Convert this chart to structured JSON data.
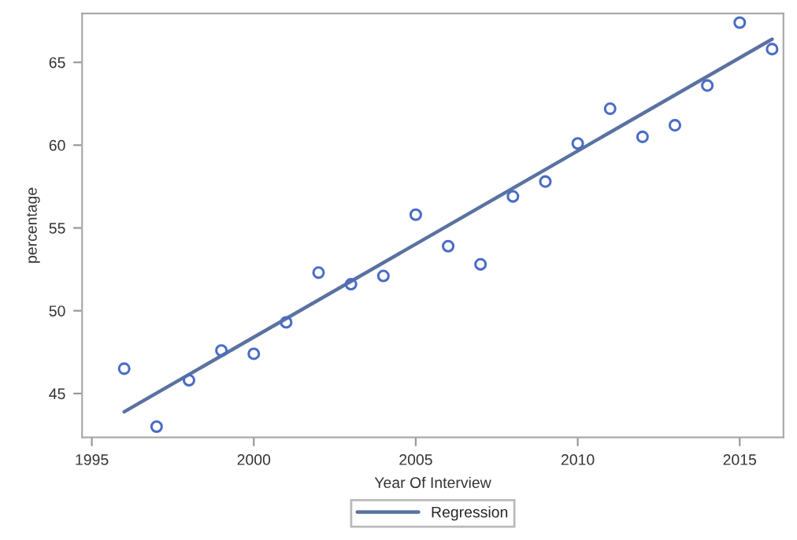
{
  "chart_data": {
    "type": "scatter",
    "xlabel": "Year Of Interview",
    "ylabel": "percentage",
    "xlim": [
      1994.7,
      2016.35
    ],
    "ylim": [
      42.35,
      67.95
    ],
    "xticks": [
      1995,
      2000,
      2005,
      2010,
      2015
    ],
    "yticks": [
      45,
      50,
      55,
      60,
      65
    ],
    "grid": false,
    "legend": "bottom",
    "series": [
      {
        "color": "#4a6cc4",
        "marker": "circle",
        "x": [
          1996,
          1997,
          1998,
          1999,
          2000,
          2001,
          2002,
          2003,
          2004,
          2005,
          2006,
          2007,
          2008,
          2009,
          2010,
          2011,
          2012,
          2013,
          2014,
          2015,
          2016
        ],
        "values": [
          46.5,
          43.0,
          45.8,
          47.6,
          47.4,
          49.3,
          52.3,
          51.6,
          52.1,
          55.8,
          53.9,
          52.8,
          56.9,
          57.8,
          60.1,
          62.2,
          60.5,
          61.2,
          63.6,
          67.4,
          65.8
        ]
      },
      {
        "type": "line",
        "name": "Regression",
        "color": "#5a72a0",
        "x": [
          1996,
          2016
        ],
        "values": [
          43.9,
          66.4
        ]
      }
    ]
  }
}
